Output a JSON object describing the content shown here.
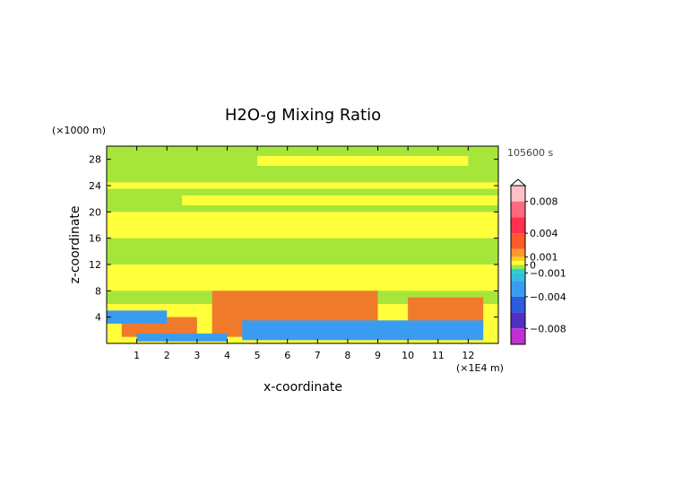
{
  "chart_data": {
    "type": "heatmap",
    "title": "H2O-g Mixing Ratio",
    "xlabel": "x-coordinate",
    "ylabel": "z-coordinate",
    "x_unit": "(×1E4 m)",
    "y_unit": "(×1000 m)",
    "time_label": "105600 s",
    "xlim": [
      0,
      13
    ],
    "ylim": [
      0,
      30
    ],
    "x_ticks": [
      "1",
      "2",
      "3",
      "4",
      "5",
      "6",
      "7",
      "8",
      "9",
      "10",
      "11",
      "12"
    ],
    "y_ticks": [
      "4",
      "8",
      "12",
      "16",
      "20",
      "24",
      "28"
    ],
    "colorbar": {
      "range": [
        -0.01,
        0.01
      ],
      "tick_labels": [
        {
          "value": 0.008,
          "label": "0.008"
        },
        {
          "value": 0.004,
          "label": "0.004"
        },
        {
          "value": 0.001,
          "label": "0.001"
        },
        {
          "value": 0,
          "label": "0"
        },
        {
          "value": -0.001,
          "label": "−0.001"
        },
        {
          "value": -0.004,
          "label": "−0.004"
        },
        {
          "value": -0.008,
          "label": "−0.008"
        }
      ]
    },
    "regions": [
      {
        "level": "green",
        "x": [
          0,
          13
        ],
        "z": [
          0,
          30
        ]
      },
      {
        "level": "yellow",
        "x": [
          0,
          13
        ],
        "z": [
          8,
          12
        ]
      },
      {
        "level": "yellow",
        "x": [
          0,
          13
        ],
        "z": [
          16,
          20
        ]
      },
      {
        "level": "yellow",
        "x": [
          0,
          13
        ],
        "z": [
          23.5,
          24.5
        ]
      },
      {
        "level": "yellow",
        "x": [
          2.5,
          13
        ],
        "z": [
          21,
          22.5
        ]
      },
      {
        "level": "yellow",
        "x": [
          5,
          12
        ],
        "z": [
          27,
          28.5
        ]
      },
      {
        "level": "yellow",
        "x": [
          0,
          13
        ],
        "z": [
          0,
          6
        ]
      },
      {
        "level": "orange",
        "x": [
          3.5,
          9
        ],
        "z": [
          1,
          8
        ]
      },
      {
        "level": "orange",
        "x": [
          0.5,
          3
        ],
        "z": [
          1,
          4
        ]
      },
      {
        "level": "orange",
        "x": [
          10,
          12.5
        ],
        "z": [
          2,
          7
        ]
      },
      {
        "level": "blue",
        "x": [
          0,
          2
        ],
        "z": [
          3,
          5
        ]
      },
      {
        "level": "blue",
        "x": [
          4.5,
          12.5
        ],
        "z": [
          0.5,
          3.5
        ]
      },
      {
        "level": "blue",
        "x": [
          1,
          4
        ],
        "z": [
          0.3,
          1.5
        ]
      }
    ],
    "level_colors": {
      "green": "#a6e63a",
      "yellow": "#ffff3c",
      "orange": "#f07a2c",
      "blue": "#3a9cf0",
      "cyan": "#2ad0d0",
      "darkblue": "#2c3cd0"
    }
  }
}
